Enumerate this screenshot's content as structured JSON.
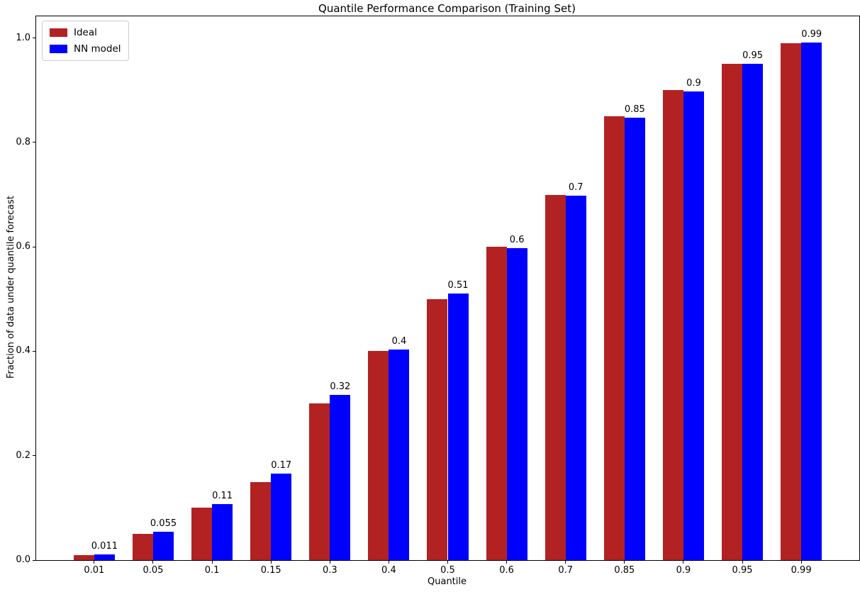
{
  "chart_data": {
    "type": "bar",
    "title": "Quantile Performance Comparison (Training Set)",
    "xlabel": "Quantile",
    "ylabel": "Fraction of data under quantile forecast",
    "categories": [
      "0.01",
      "0.05",
      "0.1",
      "0.15",
      "0.3",
      "0.4",
      "0.5",
      "0.6",
      "0.7",
      "0.85",
      "0.9",
      "0.95",
      "0.99"
    ],
    "series": [
      {
        "name": "Ideal",
        "color": "#b22222",
        "values": [
          0.01,
          0.05,
          0.1,
          0.15,
          0.3,
          0.4,
          0.5,
          0.6,
          0.7,
          0.85,
          0.9,
          0.95,
          0.99
        ]
      },
      {
        "name": "NN model",
        "color": "#0000ff",
        "values": [
          0.011,
          0.055,
          0.107,
          0.166,
          0.316,
          0.403,
          0.511,
          0.597,
          0.698,
          0.847,
          0.897,
          0.951,
          0.992
        ],
        "bar_labels": [
          "0.011",
          "0.055",
          "0.11",
          "0.17",
          "0.32",
          "0.4",
          "0.51",
          "0.6",
          "0.7",
          "0.85",
          "0.9",
          "0.95",
          "0.99"
        ]
      }
    ],
    "yticks": [
      "0.0",
      "0.2",
      "0.4",
      "0.6",
      "0.8",
      "1.0"
    ],
    "ylim": [
      0,
      1.0416
    ],
    "legend_position": "upper-left",
    "grid": false,
    "background": "#ffffff",
    "axis_color": "#000000"
  }
}
